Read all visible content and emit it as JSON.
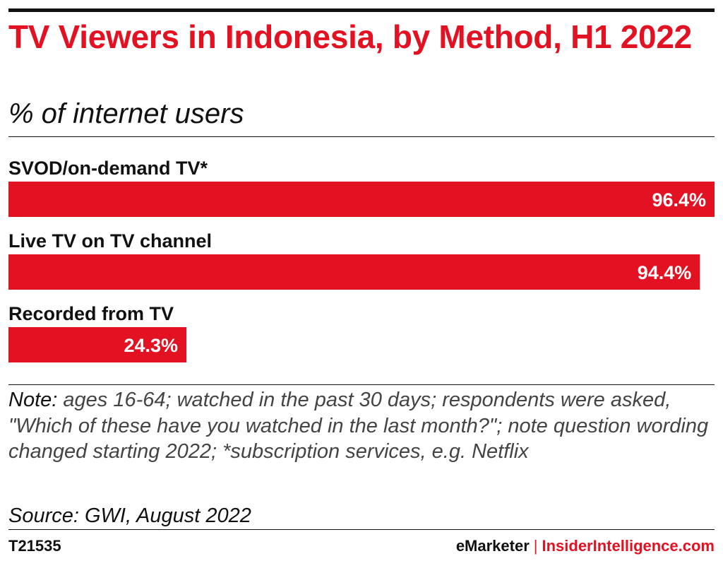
{
  "header": {
    "title": "TV Viewers in Indonesia, by Method, H1 2022",
    "subtitle": "% of internet users"
  },
  "chart_data": {
    "type": "bar",
    "orientation": "horizontal",
    "categories": [
      "SVOD/on-demand TV*",
      "Live TV on TV channel",
      "Recorded from TV"
    ],
    "values": [
      96.4,
      94.4,
      24.3
    ],
    "value_labels": [
      "96.4%",
      "94.4%",
      "24.3%"
    ],
    "title": "TV Viewers in Indonesia, by Method, H1 2022",
    "subtitle": "% of internet users",
    "xlabel": "",
    "ylabel": "",
    "xlim": [
      0,
      96.4
    ],
    "grid": false,
    "legend": "none",
    "bar_color": "#e31222"
  },
  "notes": {
    "label": "Note:",
    "text": "ages 16-64; watched in the past 30 days; respondents were asked, \"Which of these have you watched in the last month?\"; note question wording changed starting 2022; *subscription services, e.g. Netflix",
    "source": "Source: GWI, August 2022"
  },
  "footer": {
    "chart_id": "T21535",
    "brand": "eMarketer",
    "separator": "|",
    "site": "InsiderIntelligence.com"
  },
  "colors": {
    "accent": "#e31222",
    "text": "#111111",
    "value_inside": "#ffffff"
  }
}
